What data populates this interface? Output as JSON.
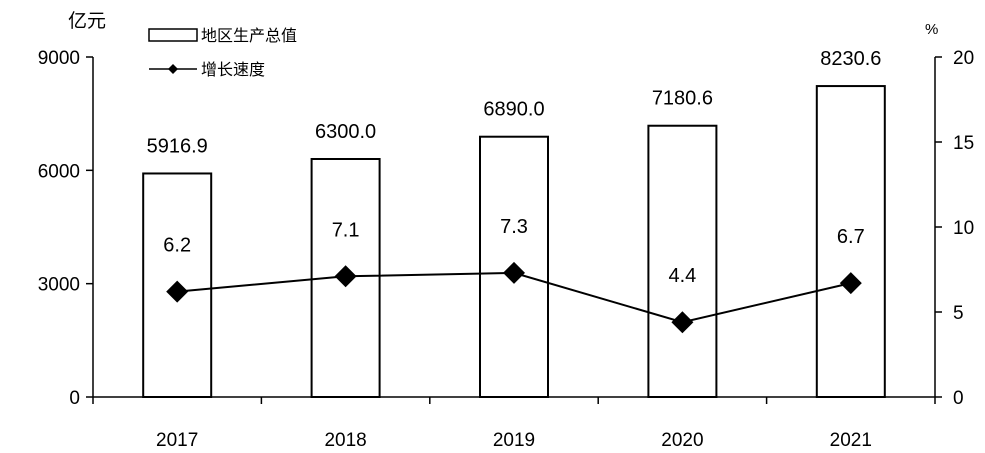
{
  "chart_data": {
    "type": "bar+line",
    "categories": [
      "2017",
      "2018",
      "2019",
      "2020",
      "2021"
    ],
    "series": [
      {
        "name": "地区生产总值",
        "type": "bar",
        "axis": "left",
        "values": [
          5916.9,
          6300.0,
          6890.0,
          7180.6,
          8230.6
        ],
        "labels": [
          "5916.9",
          "6300.0",
          "6890.0",
          "7180.6",
          "8230.6"
        ]
      },
      {
        "name": "增长速度",
        "type": "line",
        "axis": "right",
        "values": [
          6.2,
          7.1,
          7.3,
          4.4,
          6.7
        ],
        "labels": [
          "6.2",
          "7.1",
          "7.3",
          "4.4",
          "6.7"
        ]
      }
    ],
    "y_left": {
      "unit": "亿元",
      "ylim": [
        0,
        9000
      ],
      "ticks": [
        0,
        3000,
        6000,
        9000
      ],
      "tick_labels": [
        "0",
        "3000",
        "6000",
        "9000"
      ]
    },
    "y_right": {
      "unit": "%",
      "ylim": [
        0,
        20
      ],
      "ticks": [
        0,
        5,
        10,
        15,
        20
      ],
      "tick_labels": [
        "0",
        "5",
        "10",
        "15",
        "20"
      ]
    },
    "legend_position": "top-left",
    "grid": false,
    "colors": {
      "bar_fill": "#ffffff",
      "bar_stroke": "#000000",
      "line": "#000000"
    }
  }
}
